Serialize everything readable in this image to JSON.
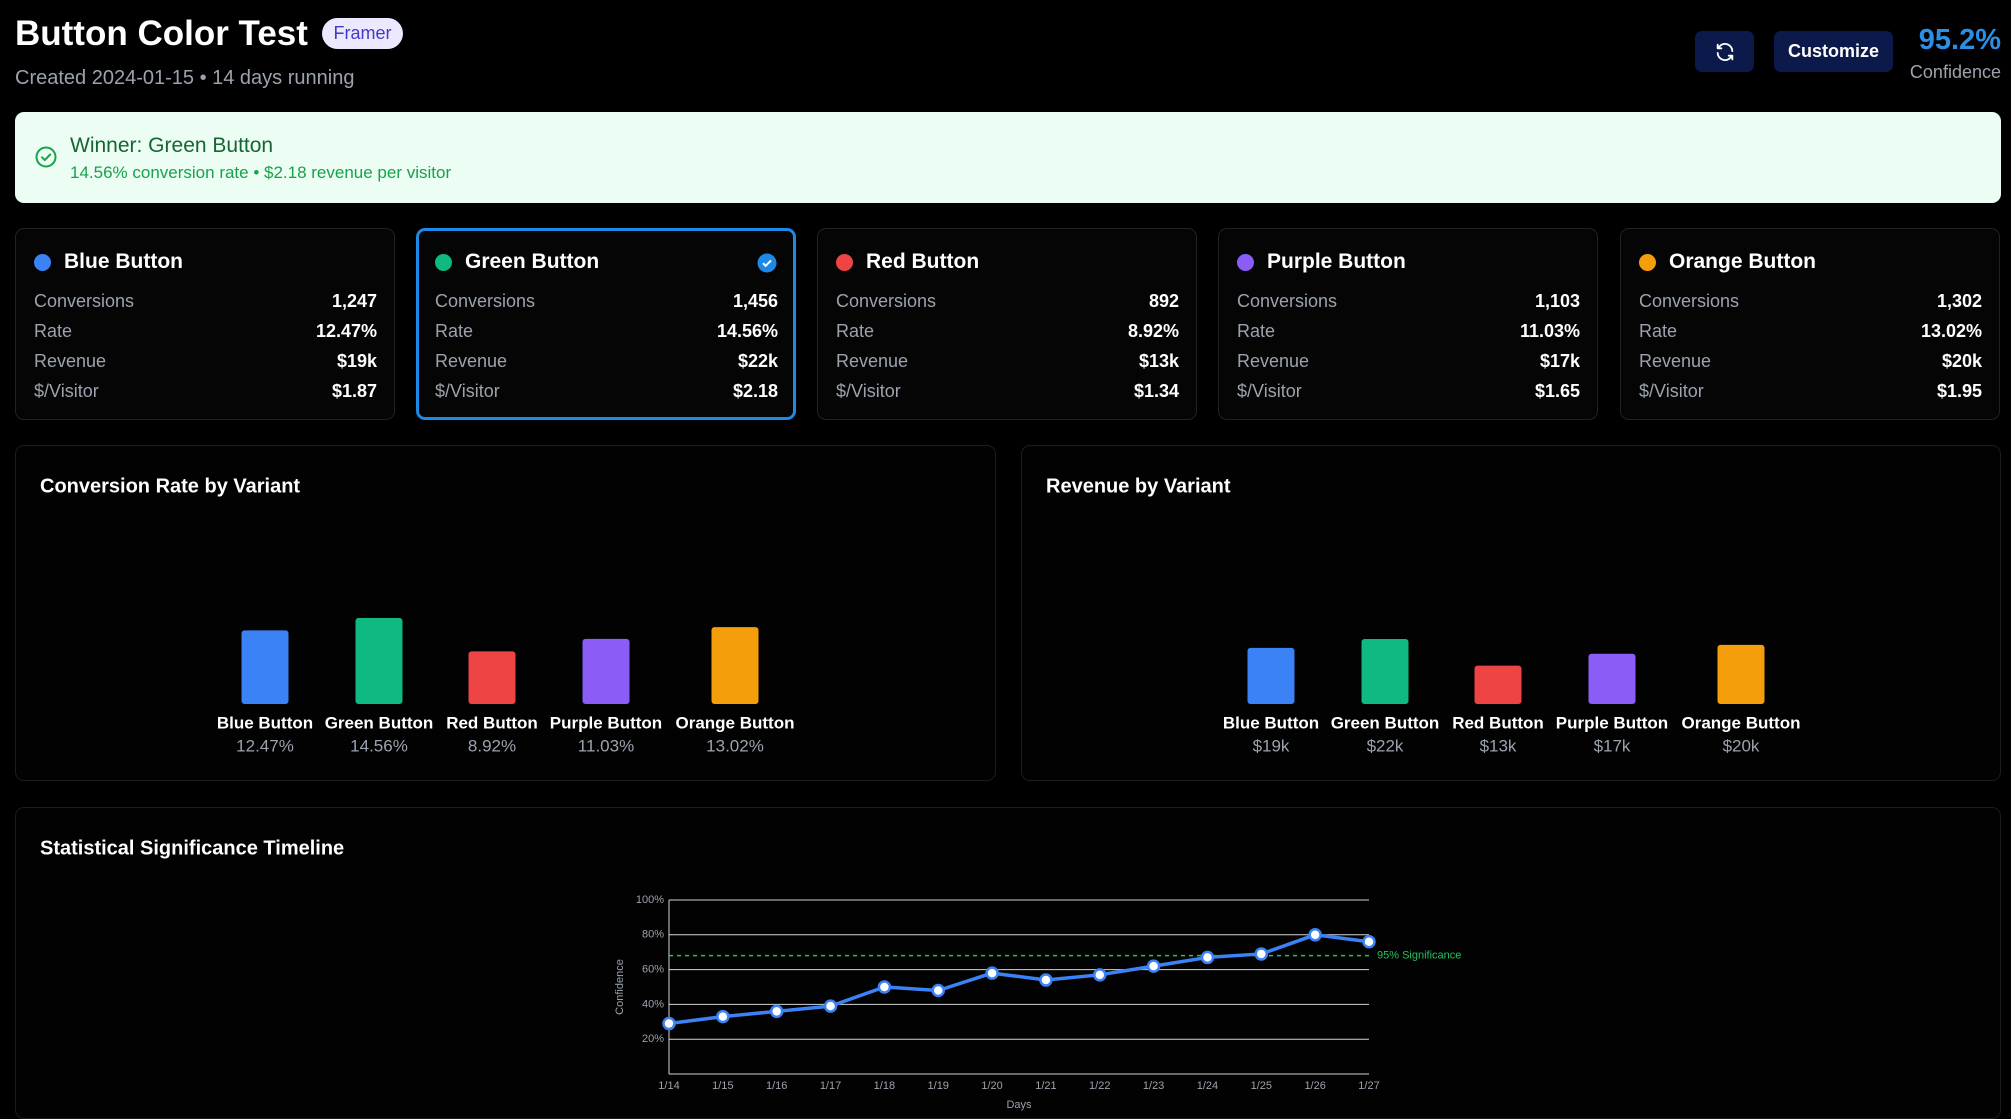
{
  "header": {
    "title": "Button Color Test",
    "badge": "Framer",
    "subtitle": "Created 2024-01-15 • 14 days running",
    "button": "Customize",
    "confidence": "95.2%",
    "confidence_label": "Confidence"
  },
  "winner": {
    "title": "Winner: Green Button",
    "detail": "14.56% conversion rate • $2.18 revenue per visitor"
  },
  "variants": [
    {
      "name": "Blue Button",
      "color": "#3b82f6",
      "selected": false,
      "stats": [
        {
          "label": "Conversions",
          "value": "1,247"
        },
        {
          "label": "Rate",
          "value": "12.47%"
        },
        {
          "label": "Revenue",
          "value": "$19k"
        },
        {
          "label": "$/Visitor",
          "value": "$1.87"
        }
      ]
    },
    {
      "name": "Green Button",
      "color": "#10b981",
      "selected": true,
      "stats": [
        {
          "label": "Conversions",
          "value": "1,456"
        },
        {
          "label": "Rate",
          "value": "14.56%"
        },
        {
          "label": "Revenue",
          "value": "$22k"
        },
        {
          "label": "$/Visitor",
          "value": "$2.18"
        }
      ]
    },
    {
      "name": "Red Button",
      "color": "#ef4444",
      "selected": false,
      "stats": [
        {
          "label": "Conversions",
          "value": "892"
        },
        {
          "label": "Rate",
          "value": "8.92%"
        },
        {
          "label": "Revenue",
          "value": "$13k"
        },
        {
          "label": "$/Visitor",
          "value": "$1.34"
        }
      ]
    },
    {
      "name": "Purple Button",
      "color": "#8b5cf6",
      "selected": false,
      "stats": [
        {
          "label": "Conversions",
          "value": "1,103"
        },
        {
          "label": "Rate",
          "value": "11.03%"
        },
        {
          "label": "Revenue",
          "value": "$17k"
        },
        {
          "label": "$/Visitor",
          "value": "$1.65"
        }
      ]
    },
    {
      "name": "Orange Button",
      "color": "#f59e0b",
      "selected": false,
      "stats": [
        {
          "label": "Conversions",
          "value": "1,302"
        },
        {
          "label": "Rate",
          "value": "13.02%"
        },
        {
          "label": "Revenue",
          "value": "$20k"
        },
        {
          "label": "$/Visitor",
          "value": "$1.95"
        }
      ]
    }
  ],
  "chart_data": [
    {
      "type": "bar",
      "title": "Conversion Rate by Variant",
      "categories": [
        "Blue Button",
        "Green Button",
        "Red Button",
        "Purple Button",
        "Orange Button"
      ],
      "values": [
        12.47,
        14.56,
        8.92,
        11.03,
        13.02
      ],
      "value_labels": [
        "12.47%",
        "14.56%",
        "8.92%",
        "11.03%",
        "13.02%"
      ],
      "colors": [
        "#3b82f6",
        "#10b981",
        "#ef4444",
        "#8b5cf6",
        "#f59e0b"
      ]
    },
    {
      "type": "bar",
      "title": "Revenue by Variant",
      "categories": [
        "Blue Button",
        "Green Button",
        "Red Button",
        "Purple Button",
        "Orange Button"
      ],
      "values": [
        19000,
        22000,
        13000,
        17000,
        20000
      ],
      "value_labels": [
        "$19k",
        "$22k",
        "$13k",
        "$17k",
        "$20k"
      ],
      "colors": [
        "#3b82f6",
        "#10b981",
        "#ef4444",
        "#8b5cf6",
        "#f59e0b"
      ]
    },
    {
      "type": "line",
      "title": "Statistical Significance Timeline",
      "x_label": "Days",
      "y_label": "Confidence",
      "x": [
        "1/14",
        "1/15",
        "1/16",
        "1/17",
        "1/18",
        "1/19",
        "1/20",
        "1/21",
        "1/22",
        "1/23",
        "1/24",
        "1/25",
        "1/26",
        "1/27"
      ],
      "values": [
        29,
        33,
        36,
        39,
        50,
        48,
        58,
        54,
        57,
        62,
        67,
        69,
        80,
        76
      ],
      "color": "#3b82f6",
      "ylim": [
        0,
        100
      ],
      "yticks": [
        {
          "value": 20,
          "label": "20%"
        },
        {
          "value": 40,
          "label": "40%"
        },
        {
          "value": 60,
          "label": "60%"
        },
        {
          "value": 80,
          "label": "80%"
        },
        {
          "value": 100,
          "label": "100%"
        }
      ],
      "threshold": 68,
      "threshold_label": "95% Significance",
      "threshold_color": "#22c55e",
      "grid": true
    }
  ]
}
